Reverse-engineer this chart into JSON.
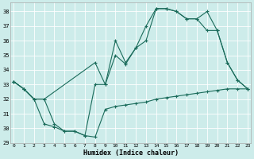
{
  "xlabel": "Humidex (Indice chaleur)",
  "bg_color": "#cdecea",
  "grid_color": "#ffffff",
  "line_color": "#1a6b5a",
  "xlim": [
    0,
    23
  ],
  "ylim": [
    29,
    38.6
  ],
  "yticks": [
    29,
    30,
    31,
    32,
    33,
    34,
    35,
    36,
    37,
    38
  ],
  "xticks": [
    0,
    1,
    2,
    3,
    4,
    5,
    6,
    7,
    8,
    9,
    10,
    11,
    12,
    13,
    14,
    15,
    16,
    17,
    18,
    19,
    20,
    21,
    22,
    23
  ],
  "line1_x": [
    0,
    1,
    2,
    3,
    4,
    5,
    6,
    7,
    8,
    9,
    10,
    11,
    12,
    13,
    14,
    15,
    16,
    17,
    18,
    19,
    20,
    21,
    22,
    23
  ],
  "line1_y": [
    33.2,
    32.7,
    32.0,
    30.3,
    30.1,
    29.8,
    29.8,
    29.5,
    29.4,
    31.3,
    31.5,
    31.6,
    31.7,
    31.8,
    32.0,
    32.1,
    32.2,
    32.3,
    32.4,
    32.5,
    32.6,
    32.7,
    32.7,
    32.7
  ],
  "line2_x": [
    0,
    1,
    2,
    3,
    4,
    5,
    6,
    7,
    8,
    9,
    10,
    11,
    12,
    13,
    14,
    15,
    16,
    17,
    18,
    19,
    20,
    21,
    22,
    23
  ],
  "line2_y": [
    33.2,
    32.7,
    32.0,
    32.0,
    30.3,
    29.8,
    29.8,
    29.5,
    33.0,
    33.0,
    35.0,
    34.4,
    35.5,
    36.0,
    38.2,
    38.2,
    38.0,
    37.5,
    37.5,
    36.7,
    36.7,
    34.5,
    33.3,
    32.7
  ],
  "line3_x": [
    0,
    1,
    2,
    3,
    8,
    9,
    10,
    11,
    12,
    13,
    14,
    15,
    16,
    17,
    18,
    19,
    20,
    21,
    22,
    23
  ],
  "line3_y": [
    33.2,
    32.7,
    32.0,
    32.0,
    34.5,
    33.0,
    36.0,
    34.5,
    35.5,
    37.0,
    38.2,
    38.2,
    38.0,
    37.5,
    37.5,
    38.0,
    36.7,
    34.5,
    33.3,
    32.7
  ]
}
